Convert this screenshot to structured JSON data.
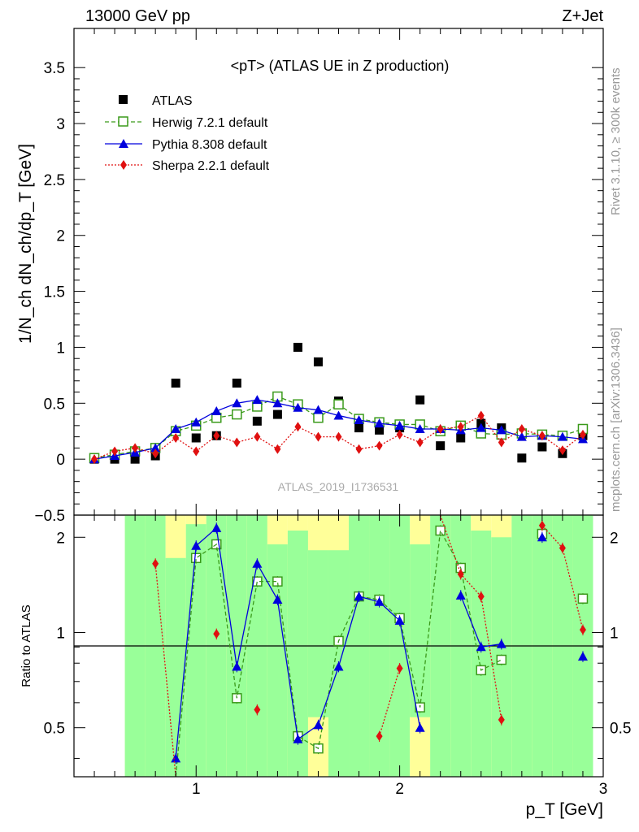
{
  "header": {
    "left": "13000 GeV pp",
    "right": "Z+Jet"
  },
  "side_labels": {
    "top": "Rivet 3.1.10, ≥ 300k events",
    "bottom": "mcplots.cern.ch [arXiv:1306.3436]"
  },
  "watermark": "ATLAS_2019_I1736531",
  "colors": {
    "data": "#000000",
    "herwig": "#3a9a1a",
    "pythia": "#0000dd",
    "sherpa": "#e01010",
    "band_green": "#99ff99",
    "band_yellow": "#ffff99"
  },
  "chart_data": [
    {
      "type": "scatter",
      "title": "<pT> (ATLAS UE in Z production)",
      "xlabel": "p_T [GeV]",
      "ylabel": "1/N_ch dN_ch/dp_T [GeV]",
      "xlim": [
        0.4,
        3.0
      ],
      "ylim": [
        -0.5,
        3.85
      ],
      "yticks": [
        -0.5,
        0,
        0.5,
        1,
        1.5,
        2,
        2.5,
        3,
        3.5
      ],
      "ytick_labels": [
        "−0.5",
        "0",
        "0.5",
        "1",
        "1.5",
        "2",
        "2.5",
        "3",
        "3.5"
      ],
      "legend_position": "top-left",
      "x": [
        0.5,
        0.6,
        0.7,
        0.8,
        0.9,
        1.0,
        1.1,
        1.2,
        1.3,
        1.4,
        1.5,
        1.6,
        1.7,
        1.8,
        1.9,
        2.0,
        2.1,
        2.2,
        2.3,
        2.4,
        2.5,
        2.6,
        2.7,
        2.8,
        2.9
      ],
      "series": [
        {
          "name": "ATLAS",
          "marker": "filled-square",
          "values": [
            0.0,
            0.0,
            0.0,
            0.03,
            0.68,
            0.19,
            0.21,
            0.68,
            0.34,
            0.4,
            1.0,
            0.87,
            0.52,
            0.28,
            0.26,
            0.28,
            0.53,
            0.12,
            0.19,
            0.32,
            0.28,
            0.01,
            0.11,
            0.05,
            0.21
          ]
        },
        {
          "name": "Herwig 7.2.1 default",
          "marker": "open-square",
          "line": "dashed",
          "values": [
            0.01,
            0.04,
            0.07,
            0.1,
            0.25,
            0.3,
            0.37,
            0.4,
            0.47,
            0.56,
            0.49,
            0.37,
            0.49,
            0.36,
            0.33,
            0.31,
            0.31,
            0.25,
            0.3,
            0.23,
            0.22,
            0.23,
            0.22,
            0.21,
            0.27
          ]
        },
        {
          "name": "Pythia 8.308 default",
          "marker": "filled-triangle",
          "line": "solid",
          "values": [
            0.0,
            0.03,
            0.06,
            0.1,
            0.27,
            0.33,
            0.43,
            0.5,
            0.53,
            0.5,
            0.46,
            0.44,
            0.39,
            0.35,
            0.32,
            0.3,
            0.27,
            0.27,
            0.26,
            0.28,
            0.26,
            0.2,
            0.21,
            0.2,
            0.18
          ]
        },
        {
          "name": "Sherpa 2.2.1 default",
          "marker": "filled-diamond",
          "line": "dotted",
          "values": [
            0.0,
            0.07,
            0.1,
            0.05,
            0.19,
            0.07,
            0.21,
            0.15,
            0.2,
            0.09,
            0.29,
            0.2,
            0.2,
            0.09,
            0.12,
            0.22,
            0.15,
            0.27,
            0.29,
            0.39,
            0.15,
            0.27,
            0.21,
            0.08,
            0.22
          ]
        }
      ]
    },
    {
      "type": "scatter",
      "ylabel": "Ratio to ATLAS",
      "xlabel": "p_T [GeV]",
      "xlim": [
        0.4,
        3.0
      ],
      "ylim": [
        0.35,
        2.35
      ],
      "xticks": [
        1,
        2,
        3
      ],
      "yticks": [
        0.5,
        1,
        2
      ],
      "ytick_labels": [
        "0.5",
        "1",
        "2"
      ],
      "reference_line": 1,
      "x": [
        0.5,
        0.6,
        0.7,
        0.8,
        0.9,
        1.0,
        1.1,
        1.2,
        1.3,
        1.4,
        1.5,
        1.6,
        1.7,
        1.8,
        1.9,
        2.0,
        2.1,
        2.2,
        2.3,
        2.4,
        2.5,
        2.6,
        2.7,
        2.8,
        2.9
      ],
      "bands": {
        "x_edges": [
          0.65,
          0.75,
          0.85,
          0.95,
          1.05,
          1.15,
          1.25,
          1.35,
          1.45,
          1.55,
          1.65,
          1.75,
          1.85,
          1.95,
          2.05,
          2.15,
          2.25,
          2.35,
          2.45,
          2.55,
          2.65,
          2.75,
          2.85,
          2.95
        ],
        "green_low": [
          0.35,
          0.35,
          0.35,
          0.35,
          0.35,
          0.35,
          0.35,
          0.35,
          0.35,
          0.54,
          0.35,
          0.35,
          0.35,
          0.35,
          0.54,
          0.35,
          0.35,
          0.35,
          0.35,
          0.35,
          0.35,
          0.35,
          0.35
        ],
        "green_high": [
          2.35,
          2.35,
          1.72,
          2.2,
          2.35,
          2.35,
          2.35,
          1.9,
          2.1,
          1.82,
          1.82,
          2.35,
          2.35,
          2.35,
          1.9,
          2.35,
          2.35,
          2.1,
          2.0,
          2.35,
          2.35,
          2.35,
          2.35
        ],
        "yellow_low": [
          0.35,
          0.35,
          0.35,
          0.35,
          0.35,
          0.35,
          0.35,
          0.35,
          0.35,
          0.35,
          0.35,
          0.35,
          0.35,
          0.35,
          0.35,
          0.35,
          0.35,
          0.35,
          0.35,
          0.35,
          0.35,
          0.35,
          0.35
        ],
        "yellow_high": [
          2.35,
          2.35,
          2.35,
          2.35,
          2.35,
          2.35,
          2.35,
          2.35,
          2.35,
          2.35,
          2.35,
          2.35,
          2.35,
          2.35,
          2.35,
          2.35,
          2.35,
          2.35,
          2.35,
          2.35,
          2.35,
          2.35,
          2.35
        ]
      },
      "series": [
        {
          "name": "Herwig 7.2.1 default",
          "values": [
            null,
            null,
            null,
            null,
            0.3,
            1.72,
            1.9,
            0.62,
            1.45,
            1.45,
            0.47,
            0.43,
            0.94,
            1.3,
            1.27,
            1.11,
            0.58,
            2.1,
            1.6,
            0.76,
            0.82,
            null,
            2.05,
            null,
            1.28
          ]
        },
        {
          "name": "Pythia 8.308 default",
          "values": [
            null,
            null,
            null,
            null,
            0.4,
            1.88,
            2.14,
            0.78,
            1.65,
            1.27,
            0.46,
            0.51,
            0.78,
            1.3,
            1.25,
            1.09,
            0.5,
            null,
            1.31,
            0.9,
            0.92,
            null,
            2.0,
            null,
            0.84
          ]
        },
        {
          "name": "Sherpa 2.2.1 default",
          "values": [
            null,
            null,
            null,
            1.65,
            0.28,
            null,
            0.99,
            null,
            0.57,
            null,
            null,
            null,
            null,
            null,
            0.47,
            0.77,
            null,
            2.35,
            1.53,
            1.3,
            0.53,
            null,
            2.18,
            1.85,
            1.02
          ]
        }
      ]
    }
  ]
}
